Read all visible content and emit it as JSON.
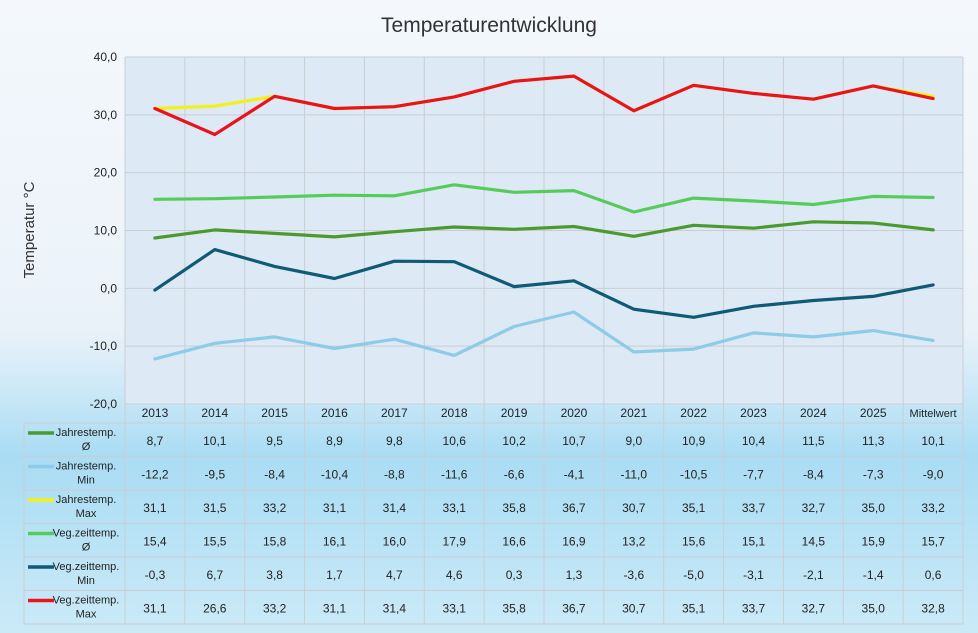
{
  "chart_data": {
    "type": "line",
    "title": "Temperaturentwicklung",
    "ylabel": "Temperatur °C",
    "ylim": [
      -20,
      40
    ],
    "yticks": [
      "40,0",
      "30,0",
      "20,0",
      "10,0",
      "0,0",
      "-10,0",
      "-20,0"
    ],
    "ytick_values": [
      40,
      30,
      20,
      10,
      0,
      -10,
      -20
    ],
    "grid": true,
    "legend": "data-table-below",
    "categories": [
      "2013",
      "2014",
      "2015",
      "2016",
      "2017",
      "2018",
      "2019",
      "2020",
      "2021",
      "2022",
      "2023",
      "2024",
      "2025",
      "Mittelwert"
    ],
    "series": [
      {
        "name_lines": [
          "Jahrestemp.",
          "Ø"
        ],
        "color": "#4a9a30",
        "values": [
          8.7,
          10.1,
          9.5,
          8.9,
          9.8,
          10.6,
          10.2,
          10.7,
          9.0,
          10.9,
          10.4,
          11.5,
          11.3,
          10.1
        ],
        "labels": [
          "8,7",
          "10,1",
          "9,5",
          "8,9",
          "9,8",
          "10,6",
          "10,2",
          "10,7",
          "9,0",
          "10,9",
          "10,4",
          "11,5",
          "11,3",
          "10,1"
        ]
      },
      {
        "name_lines": [
          "Jahrestemp.",
          "Min"
        ],
        "color": "#8ecbe8",
        "values": [
          -12.2,
          -9.5,
          -8.4,
          -10.4,
          -8.8,
          -11.6,
          -6.6,
          -4.1,
          -11.0,
          -10.5,
          -7.7,
          -8.4,
          -7.3,
          -9.0
        ],
        "labels": [
          "-12,2",
          "-9,5",
          "-8,4",
          "-10,4",
          "-8,8",
          "-11,6",
          "-6,6",
          "-4,1",
          "-11,0",
          "-10,5",
          "-7,7",
          "-8,4",
          "-7,3",
          "-9,0"
        ]
      },
      {
        "name_lines": [
          "Jahrestemp.",
          "Max"
        ],
        "color": "#f2f21a",
        "values": [
          31.1,
          31.5,
          33.2,
          31.1,
          31.4,
          33.1,
          35.8,
          36.7,
          30.7,
          35.1,
          33.7,
          32.7,
          35.0,
          33.2
        ],
        "labels": [
          "31,1",
          "31,5",
          "33,2",
          "31,1",
          "31,4",
          "33,1",
          "35,8",
          "36,7",
          "30,7",
          "35,1",
          "33,7",
          "32,7",
          "35,0",
          "33,2"
        ]
      },
      {
        "name_lines": [
          "Veg.zeittemp.",
          "Ø"
        ],
        "color": "#55cc5a",
        "values": [
          15.4,
          15.5,
          15.8,
          16.1,
          16.0,
          17.9,
          16.6,
          16.9,
          13.2,
          15.6,
          15.1,
          14.5,
          15.9,
          15.7
        ],
        "labels": [
          "15,4",
          "15,5",
          "15,8",
          "16,1",
          "16,0",
          "17,9",
          "16,6",
          "16,9",
          "13,2",
          "15,6",
          "15,1",
          "14,5",
          "15,9",
          "15,7"
        ]
      },
      {
        "name_lines": [
          "Veg.zeittemp.",
          "Min"
        ],
        "color": "#0f5a76",
        "values": [
          -0.3,
          6.7,
          3.8,
          1.7,
          4.7,
          4.6,
          0.3,
          1.3,
          -3.6,
          -5.0,
          -3.1,
          -2.1,
          -1.4,
          0.6
        ],
        "labels": [
          "-0,3",
          "6,7",
          "3,8",
          "1,7",
          "4,7",
          "4,6",
          "0,3",
          "1,3",
          "-3,6",
          "-5,0",
          "-3,1",
          "-2,1",
          "-1,4",
          "0,6"
        ]
      },
      {
        "name_lines": [
          "Veg.zeittemp.",
          "Max"
        ],
        "color": "#e8141a",
        "values": [
          31.1,
          26.6,
          33.2,
          31.1,
          31.4,
          33.1,
          35.8,
          36.7,
          30.7,
          35.1,
          33.7,
          32.7,
          35.0,
          32.8
        ],
        "labels": [
          "31,1",
          "26,6",
          "33,2",
          "31,1",
          "31,4",
          "33,1",
          "35,8",
          "36,7",
          "30,7",
          "35,1",
          "33,7",
          "32,7",
          "35,0",
          "32,8"
        ]
      }
    ]
  }
}
